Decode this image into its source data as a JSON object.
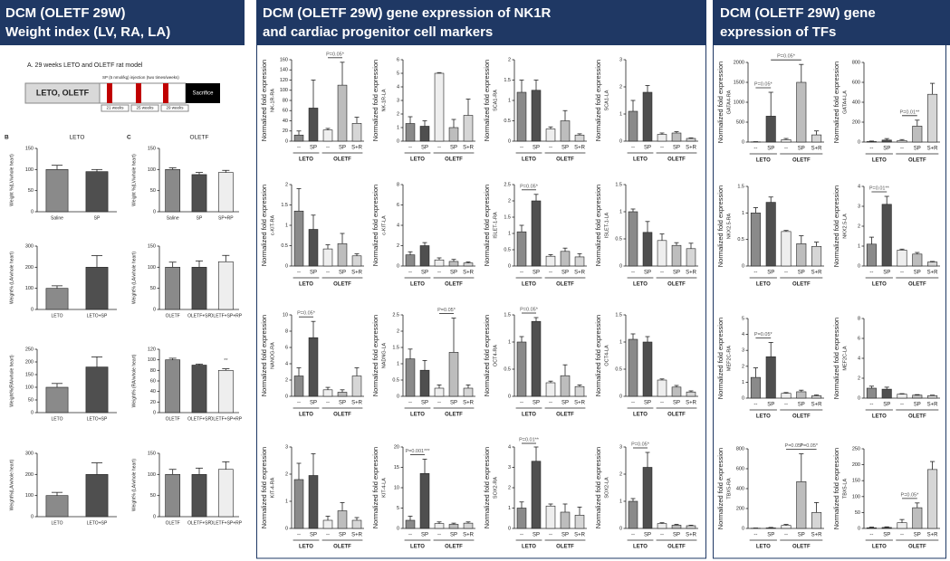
{
  "headers": [
    [
      "DCM (OLETF 29W)",
      "Weight index (LV, RA, LA)"
    ],
    [
      "DCM (OLETF 29W) gene expression of NK1R",
      "and cardiac progenitor cell markers"
    ],
    [
      "DCM (OLETF 29W) gene",
      "expression of TFs"
    ]
  ],
  "figure": {
    "title": "A. 29 weeks LETO and OLETF rat model",
    "box": "LETO, OLETF",
    "injection": "SP (5 nmol/kg) injection (two times/weeks)",
    "weeks": [
      "21 weeks",
      "25 weeks",
      "29 weeks"
    ],
    "end": "Sacrifice"
  },
  "bar_colors": [
    "#8a8a8a",
    "#4f4f4f",
    "#eeeeee",
    "#bdbdbd",
    "#d6d6d6"
  ],
  "chart_data": [
    {
      "type": "bar",
      "letter": "B",
      "title": "LETO",
      "ylabel": "Weight %(LV/whole heart)",
      "categories": [
        "Saline",
        "SP"
      ],
      "values": [
        100,
        95
      ],
      "errors": [
        10,
        5
      ],
      "ylim": [
        0,
        150
      ],
      "yticks": [
        0,
        50,
        100,
        150
      ]
    },
    {
      "type": "bar",
      "letter": "C",
      "title": "OLETF",
      "ylabel": "Weight %(LV/whole heart)",
      "categories": [
        "Saline",
        "SP",
        "SP+RP"
      ],
      "values": [
        100,
        88,
        93
      ],
      "errors": [
        4,
        5,
        5
      ],
      "ylim": [
        0,
        150
      ],
      "yticks": [
        0,
        50,
        100,
        150
      ]
    },
    {
      "type": "bar",
      "ylabel": "Weight% (LA/whole heart)",
      "categories": [
        "LETO",
        "LETO+SP"
      ],
      "values": [
        100,
        200
      ],
      "errors": [
        12,
        55
      ],
      "ylim": [
        0,
        300
      ],
      "yticks": [
        0,
        100,
        200,
        300
      ]
    },
    {
      "type": "bar",
      "ylabel": "Weight% (LA/whole heart)",
      "categories": [
        "OLETF",
        "OLETF+SP",
        "OLETF+SP+RP"
      ],
      "values": [
        100,
        100,
        113
      ],
      "errors": [
        12,
        15,
        15
      ],
      "ylim": [
        0,
        150
      ],
      "yticks": [
        0,
        50,
        100,
        150
      ]
    },
    {
      "type": "bar",
      "ylabel": "Weight%(RA/whole heart)",
      "categories": [
        "LETO",
        "LETO+SP"
      ],
      "values": [
        100,
        180
      ],
      "errors": [
        15,
        40
      ],
      "ylim": [
        0,
        250
      ],
      "yticks": [
        0,
        50,
        100,
        150,
        200,
        250
      ]
    },
    {
      "type": "bar",
      "ylabel": "Weight% (RA/whole heart)",
      "categories": [
        "OLETF",
        "OLETF+SP",
        "OLETF+SP+RP"
      ],
      "values": [
        100,
        90,
        80
      ],
      "errors": [
        3,
        2,
        3
      ],
      "ylim": [
        0,
        120
      ],
      "yticks": [
        0,
        20,
        40,
        60,
        80,
        100,
        120
      ],
      "annotations": [
        "**"
      ]
    },
    {
      "type": "bar",
      "ylabel": "Weight%(LA/whole heart)",
      "categories": [
        "LETO",
        "LETO+SP"
      ],
      "values": [
        100,
        200
      ],
      "errors": [
        15,
        55
      ],
      "ylim": [
        0,
        300
      ],
      "yticks": [
        0,
        100,
        200,
        300
      ]
    },
    {
      "type": "bar",
      "ylabel": "Weight% (LA/whole heart)",
      "categories": [
        "OLETF",
        "OLETF+SP",
        "OLETF+SP+RP"
      ],
      "values": [
        100,
        100,
        112
      ],
      "errors": [
        12,
        15,
        18
      ],
      "ylim": [
        0,
        150
      ],
      "yticks": [
        0,
        50,
        100,
        150
      ]
    },
    {
      "type": "bar",
      "ylabel": "Normalized fold expression",
      "gene": "NK-1R-RA",
      "categories": [
        "--",
        "SP",
        "--",
        "SP",
        "S+R"
      ],
      "groups": [
        "LETO",
        "OLETF"
      ],
      "values": [
        12,
        65,
        22,
        110,
        35
      ],
      "errors": [
        8,
        55,
        3,
        45,
        12
      ],
      "ylim": [
        0,
        160
      ],
      "yticks": [
        0,
        20,
        40,
        60,
        80,
        100,
        120,
        140,
        160
      ],
      "annotations": [
        "P=0.05*"
      ]
    },
    {
      "type": "bar",
      "ylabel": "Normalized fold expression",
      "gene": "NK-1R-LA",
      "categories": [
        "--",
        "SP",
        "--",
        "SP",
        "S+R"
      ],
      "groups": [
        "LETO",
        "OLETF"
      ],
      "values": [
        1.3,
        1.1,
        5,
        1,
        1.9
      ],
      "errors": [
        0.5,
        0.4,
        0.05,
        0.6,
        1.2
      ],
      "ylim": [
        0,
        6
      ],
      "yticks": [
        0,
        1,
        2,
        3,
        4,
        5,
        6
      ]
    },
    {
      "type": "bar",
      "ylabel": "Normalized fold expression",
      "gene": "SCA1-RA",
      "categories": [
        "--",
        "SP",
        "--",
        "SP",
        "S+R"
      ],
      "groups": [
        "LETO",
        "OLETF"
      ],
      "values": [
        1.2,
        1.25,
        0.3,
        0.5,
        0.15
      ],
      "errors": [
        0.3,
        0.25,
        0.05,
        0.25,
        0.03
      ],
      "ylim": [
        0,
        2
      ],
      "yticks": [
        0,
        0.5,
        1,
        1.5,
        2
      ]
    },
    {
      "type": "bar",
      "ylabel": "Normalized fold expression",
      "gene": "SCA1-LA",
      "categories": [
        "--",
        "SP",
        "--",
        "SP",
        "S+R"
      ],
      "groups": [
        "LETO",
        "OLETF"
      ],
      "values": [
        1.1,
        1.8,
        0.25,
        0.3,
        0.1
      ],
      "errors": [
        0.4,
        0.25,
        0.05,
        0.05,
        0.02
      ],
      "ylim": [
        0,
        3
      ],
      "yticks": [
        0,
        1,
        2,
        3
      ]
    },
    {
      "type": "bar",
      "ylabel": "Normalized fold expression",
      "gene": "c-KIT-RA",
      "categories": [
        "--",
        "SP",
        "--",
        "SP",
        "S+R"
      ],
      "groups": [
        "LETO",
        "OLETF"
      ],
      "values": [
        1.35,
        0.9,
        0.42,
        0.55,
        0.25
      ],
      "errors": [
        0.55,
        0.35,
        0.1,
        0.25,
        0.05
      ],
      "ylim": [
        0,
        2
      ],
      "yticks": [
        0,
        0.5,
        1,
        1.5,
        2
      ]
    },
    {
      "type": "bar",
      "ylabel": "Normalized fold expression",
      "gene": "c-KIT-LA",
      "categories": [
        "--",
        "SP",
        "--",
        "SP",
        "S+R"
      ],
      "groups": [
        "LETO",
        "OLETF"
      ],
      "values": [
        1.1,
        2,
        0.6,
        0.45,
        0.3
      ],
      "errors": [
        0.3,
        0.3,
        0.2,
        0.2,
        0.1
      ],
      "ylim": [
        0,
        8
      ],
      "yticks": [
        0,
        2,
        4,
        6,
        8
      ]
    },
    {
      "type": "bar",
      "ylabel": "Normalized fold expression",
      "gene": "ISLET-1-RA",
      "categories": [
        "--",
        "SP",
        "--",
        "SP",
        "S+R"
      ],
      "groups": [
        "LETO",
        "OLETF"
      ],
      "values": [
        1.05,
        2,
        0.3,
        0.45,
        0.28
      ],
      "errors": [
        0.2,
        0.2,
        0.05,
        0.1,
        0.1
      ],
      "ylim": [
        0,
        2.5
      ],
      "yticks": [
        0,
        0.5,
        1,
        1.5,
        2,
        2.5
      ],
      "annotations": [
        "P=0.05*"
      ]
    },
    {
      "type": "bar",
      "ylabel": "Normalized fold expression",
      "gene": "ISLET-1-LA",
      "categories": [
        "--",
        "SP",
        "--",
        "SP",
        "S+R"
      ],
      "groups": [
        "LETO",
        "OLETF"
      ],
      "values": [
        1,
        0.62,
        0.47,
        0.38,
        0.32
      ],
      "errors": [
        0.05,
        0.2,
        0.12,
        0.05,
        0.1
      ],
      "ylim": [
        0,
        1.5
      ],
      "yticks": [
        0,
        0.5,
        1,
        1.5
      ]
    },
    {
      "type": "bar",
      "ylabel": "Normalized fold expression",
      "gene": "NANOG-RA",
      "categories": [
        "--",
        "SP",
        "--",
        "SP",
        "S+R"
      ],
      "groups": [
        "LETO",
        "OLETF"
      ],
      "values": [
        2.5,
        7.2,
        0.8,
        0.5,
        2.5
      ],
      "errors": [
        1,
        2,
        0.3,
        0.3,
        1
      ],
      "ylim": [
        0,
        10
      ],
      "yticks": [
        0,
        2,
        4,
        6,
        8,
        10
      ],
      "annotations": [
        "P=0.05*"
      ]
    },
    {
      "type": "bar",
      "ylabel": "Normalized fold expression",
      "gene": "NADNG-LA",
      "categories": [
        "--",
        "SP",
        "--",
        "SP",
        "S+R"
      ],
      "groups": [
        "LETO",
        "OLETF"
      ],
      "values": [
        1.15,
        0.8,
        0.25,
        1.35,
        0.25
      ],
      "errors": [
        0.3,
        0.3,
        0.1,
        1.05,
        0.1
      ],
      "ylim": [
        0,
        2.5
      ],
      "yticks": [
        0,
        0.5,
        1,
        1.5,
        2,
        2.5
      ],
      "annotations": [
        "P=0.05*"
      ]
    },
    {
      "type": "bar",
      "ylabel": "Normalized fold expression",
      "gene": "OCT4-RA",
      "categories": [
        "--",
        "SP",
        "--",
        "SP",
        "S+R"
      ],
      "groups": [
        "LETO",
        "OLETF"
      ],
      "values": [
        1,
        1.38,
        0.25,
        0.38,
        0.18
      ],
      "errors": [
        0.1,
        0.07,
        0.03,
        0.2,
        0.03
      ],
      "ylim": [
        0,
        1.5
      ],
      "yticks": [
        0,
        0.5,
        1,
        1.5
      ],
      "annotations": [
        "P=0.05*"
      ]
    },
    {
      "type": "bar",
      "ylabel": "Normalized fold expression",
      "gene": "OCT4-LA",
      "categories": [
        "--",
        "SP",
        "--",
        "SP",
        "S+R"
      ],
      "groups": [
        "LETO",
        "OLETF"
      ],
      "values": [
        1.05,
        1,
        0.3,
        0.17,
        0.08
      ],
      "errors": [
        0.1,
        0.1,
        0.02,
        0.03,
        0.02
      ],
      "ylim": [
        0,
        1.5
      ],
      "yticks": [
        0,
        0.5,
        1,
        1.5
      ]
    },
    {
      "type": "bar",
      "ylabel": "Normalized fold expression",
      "gene": "KIT-4-RA",
      "categories": [
        "--",
        "SP",
        "--",
        "SP",
        "S+R"
      ],
      "groups": [
        "LETO",
        "OLETF"
      ],
      "values": [
        1.8,
        1.95,
        0.3,
        0.65,
        0.3
      ],
      "errors": [
        0.6,
        0.8,
        0.15,
        0.3,
        0.1
      ],
      "ylim": [
        0,
        3
      ],
      "yticks": [
        0,
        1,
        2,
        3
      ]
    },
    {
      "type": "bar",
      "ylabel": "Normalized fold expression",
      "gene": "KIT-4-LA",
      "categories": [
        "--",
        "SP",
        "--",
        "SP",
        "S+R"
      ],
      "groups": [
        "LETO",
        "OLETF"
      ],
      "values": [
        2,
        13.5,
        1.2,
        1,
        1.3
      ],
      "errors": [
        1,
        3.5,
        0.4,
        0.3,
        0.3
      ],
      "ylim": [
        0,
        20
      ],
      "yticks": [
        0,
        5,
        10,
        15,
        20
      ],
      "annotations": [
        "P=0.001***"
      ]
    },
    {
      "type": "bar",
      "ylabel": "Normalized fold expression",
      "gene": "SOX2-RA",
      "categories": [
        "--",
        "SP",
        "--",
        "SP",
        "S+R"
      ],
      "groups": [
        "LETO",
        "OLETF"
      ],
      "values": [
        1,
        3.3,
        1.1,
        0.8,
        0.65
      ],
      "errors": [
        0.3,
        0.7,
        0.1,
        0.4,
        0.4
      ],
      "ylim": [
        0,
        4
      ],
      "yticks": [
        0,
        1,
        2,
        3,
        4
      ],
      "annotations": [
        "P=0.01**"
      ]
    },
    {
      "type": "bar",
      "ylabel": "Normalized fold expression",
      "gene": "SOX2-LA",
      "categories": [
        "--",
        "SP",
        "--",
        "SP",
        "S+R"
      ],
      "groups": [
        "LETO",
        "OLETF"
      ],
      "values": [
        1,
        2.25,
        0.18,
        0.12,
        0.1
      ],
      "errors": [
        0.1,
        0.55,
        0.03,
        0.03,
        0.02
      ],
      "ylim": [
        0,
        3
      ],
      "yticks": [
        0,
        1,
        2,
        3
      ],
      "annotations": [
        "P=0.05*"
      ]
    },
    {
      "type": "bar",
      "ylabel": "Normalized fold expression",
      "gene": "GATA4-RA",
      "categories": [
        "--",
        "SP",
        "--",
        "SP",
        "S+R"
      ],
      "groups": [
        "LETO",
        "OLETF"
      ],
      "values": [
        5,
        650,
        60,
        1500,
        180
      ],
      "errors": [
        5,
        600,
        30,
        450,
        100
      ],
      "ylim": [
        0,
        2000
      ],
      "yticks": [
        0,
        500,
        1000,
        1500,
        2000
      ],
      "annotations": [
        "P=0.05*",
        "P=0.05*"
      ]
    },
    {
      "type": "bar",
      "ylabel": "Normalized fold expression",
      "gene": "GATA4-LA",
      "categories": [
        "--",
        "SP",
        "--",
        "SP",
        "S+R"
      ],
      "groups": [
        "LETO",
        "OLETF"
      ],
      "values": [
        5,
        20,
        15,
        160,
        480
      ],
      "errors": [
        5,
        15,
        10,
        60,
        110
      ],
      "ylim": [
        0,
        800
      ],
      "yticks": [
        0,
        200,
        400,
        600,
        800
      ],
      "annotations": [
        "P=0.01**"
      ]
    },
    {
      "type": "bar",
      "ylabel": "Normalized fold expression",
      "gene": "NKX2.5-RA",
      "categories": [
        "--",
        "SP",
        "--",
        "SP",
        "S+R"
      ],
      "groups": [
        "LETO",
        "OLETF"
      ],
      "values": [
        1,
        1.2,
        0.65,
        0.42,
        0.37
      ],
      "errors": [
        0.1,
        0.1,
        0.02,
        0.15,
        0.08
      ],
      "ylim": [
        0,
        1.5
      ],
      "yticks": [
        0,
        0.5,
        1,
        1.5
      ]
    },
    {
      "type": "bar",
      "ylabel": "Normalized fold expression",
      "gene": "NKX2.5-LA",
      "categories": [
        "--",
        "SP",
        "--",
        "SP",
        "S+R"
      ],
      "groups": [
        "LETO",
        "OLETF"
      ],
      "values": [
        1.1,
        3.1,
        0.8,
        0.6,
        0.2
      ],
      "errors": [
        0.35,
        0.4,
        0.05,
        0.08,
        0.03
      ],
      "ylim": [
        0,
        4
      ],
      "yticks": [
        0,
        1,
        2,
        3,
        4
      ],
      "annotations": [
        "P=0.01**"
      ]
    },
    {
      "type": "bar",
      "ylabel": "Normalized fold expression",
      "gene": "MEF2C-RA",
      "categories": [
        "--",
        "SP",
        "--",
        "SP",
        "S+R"
      ],
      "groups": [
        "LETO",
        "OLETF"
      ],
      "values": [
        1.3,
        2.6,
        0.3,
        0.4,
        0.15
      ],
      "errors": [
        0.6,
        0.9,
        0.05,
        0.1,
        0.05
      ],
      "ylim": [
        0,
        5
      ],
      "yticks": [
        0,
        1,
        2,
        3,
        4,
        5
      ],
      "annotations": [
        "P=0.05*"
      ]
    },
    {
      "type": "bar",
      "ylabel": "Normalized fold expression",
      "gene": "MEF2C-LA",
      "categories": [
        "--",
        "SP",
        "--",
        "SP",
        "S+R"
      ],
      "groups": [
        "LETO",
        "OLETF"
      ],
      "values": [
        1,
        0.9,
        0.4,
        0.3,
        0.25
      ],
      "errors": [
        0.2,
        0.2,
        0.05,
        0.05,
        0.05
      ],
      "ylim": [
        0,
        8
      ],
      "yticks": [
        0,
        2,
        4,
        6,
        8
      ]
    },
    {
      "type": "bar",
      "ylabel": "Normalized fold expression",
      "gene": "TBX5-RA",
      "categories": [
        "--",
        "SP",
        "--",
        "SP",
        "S+R"
      ],
      "groups": [
        "LETO",
        "OLETF"
      ],
      "values": [
        2,
        5,
        30,
        470,
        160
      ],
      "errors": [
        2,
        5,
        10,
        280,
        100
      ],
      "ylim": [
        0,
        800
      ],
      "yticks": [
        0,
        200,
        400,
        600,
        800
      ],
      "annotations": [
        "P=0.05*",
        "P=0.05*"
      ]
    },
    {
      "type": "bar",
      "ylabel": "Normalized fold expression",
      "gene": "TBX5-LA",
      "categories": [
        "--",
        "SP",
        "--",
        "SP",
        "S+R"
      ],
      "groups": [
        "LETO",
        "OLETF"
      ],
      "values": [
        2,
        3,
        18,
        65,
        185
      ],
      "errors": [
        2,
        2,
        10,
        15,
        25
      ],
      "ylim": [
        0,
        250
      ],
      "yticks": [
        0,
        50,
        100,
        150,
        200,
        250
      ],
      "annotations": [
        "P=0.05*"
      ]
    }
  ]
}
